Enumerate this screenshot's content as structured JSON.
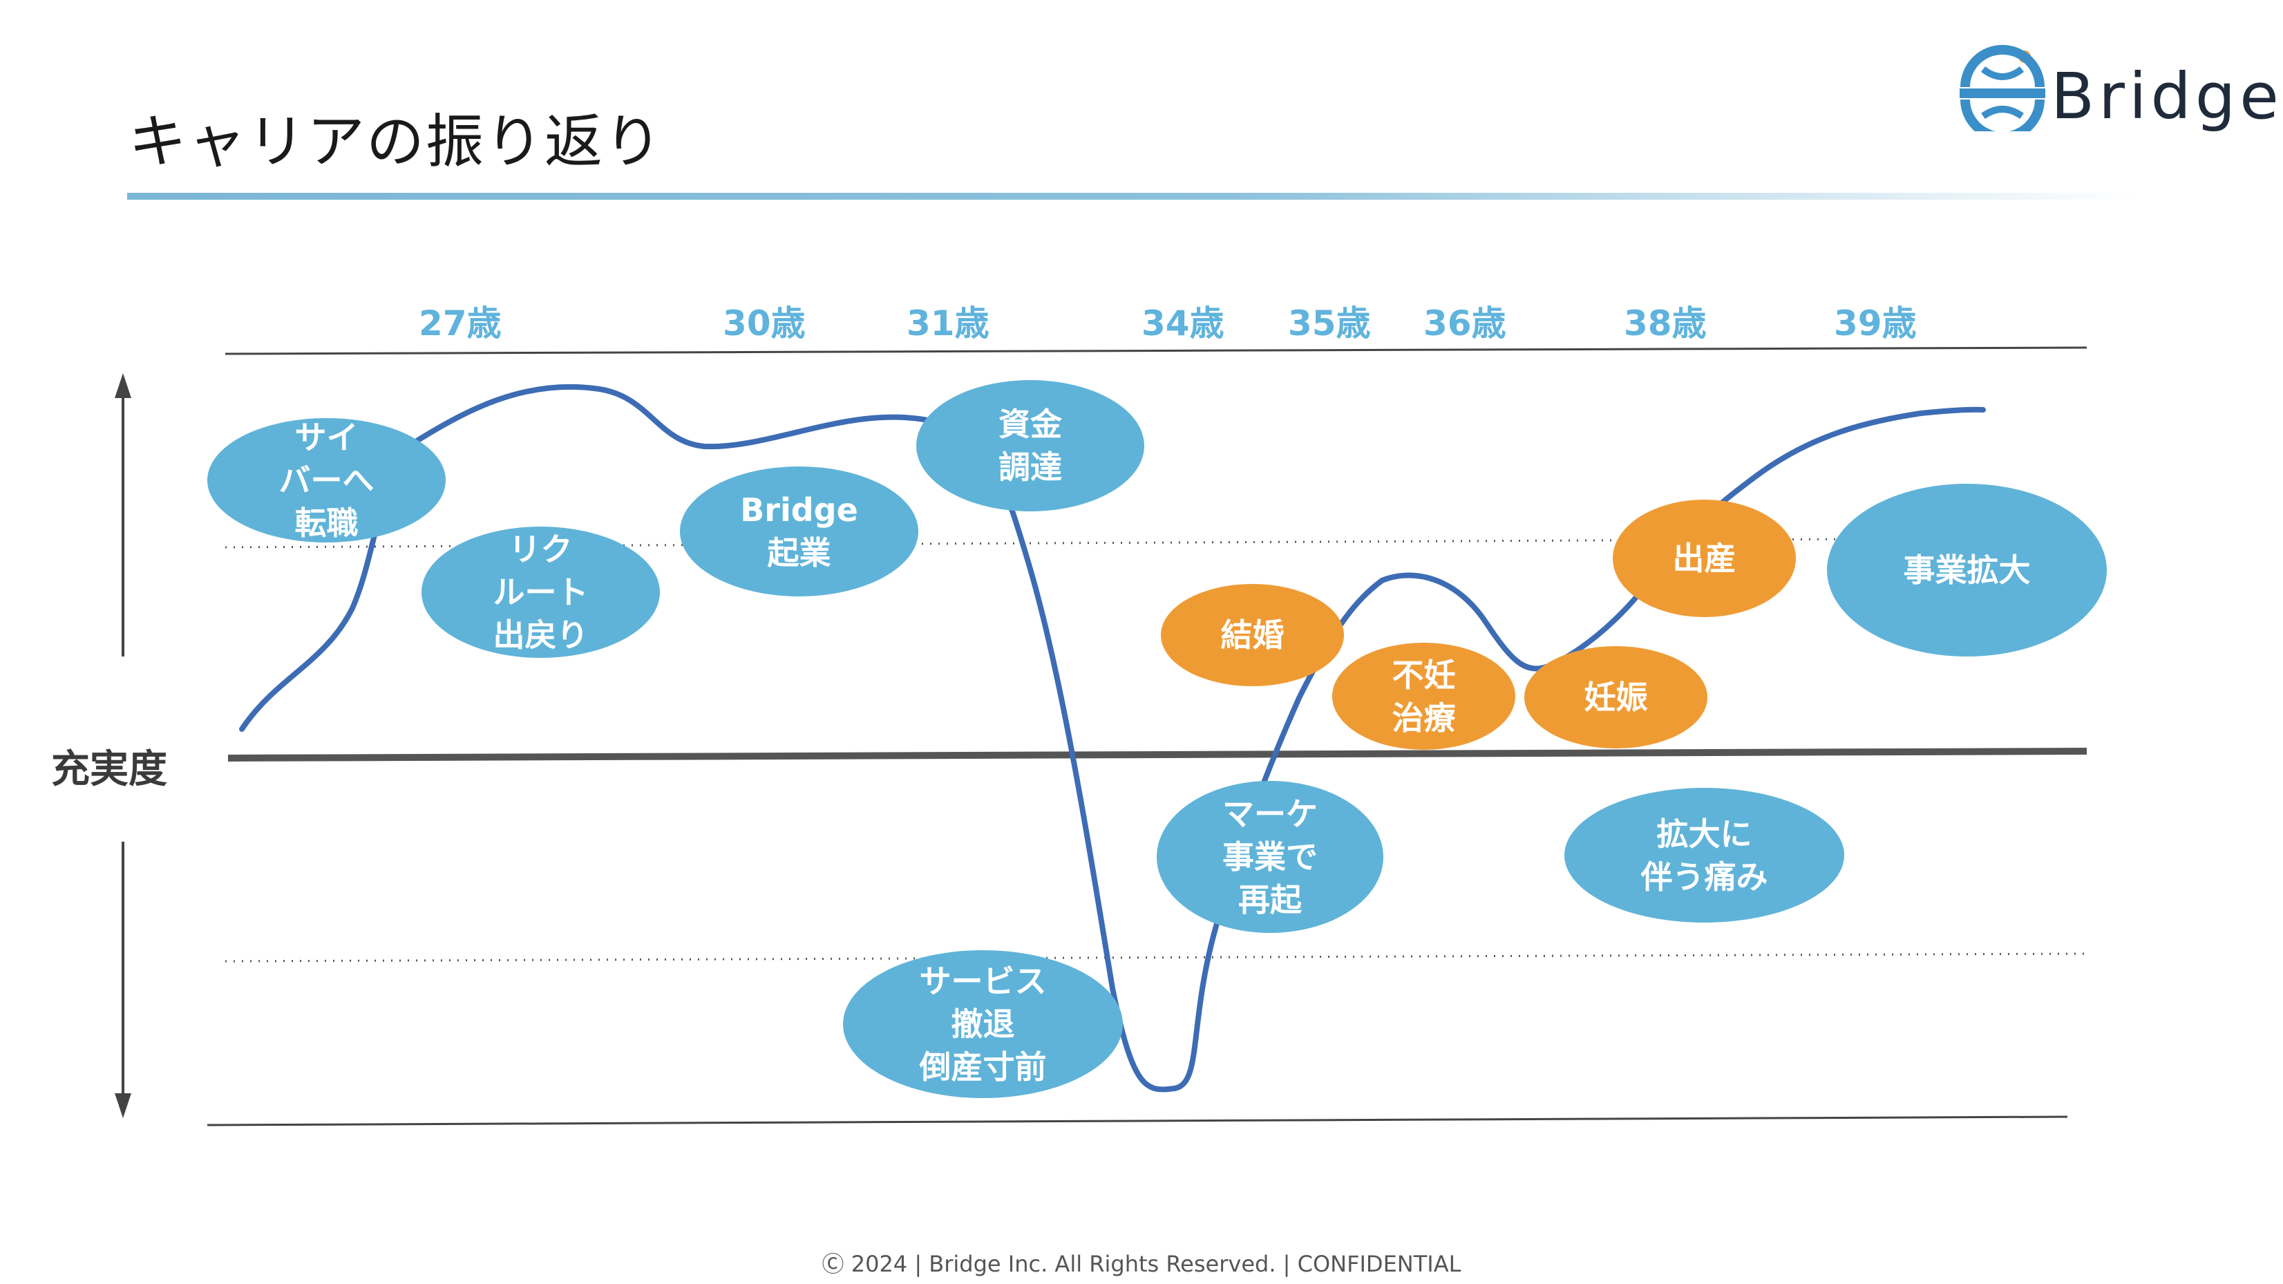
{
  "header": {
    "title": "キャリアの振り返り"
  },
  "logo": {
    "name": "Bridge",
    "icon": "bridge-globe-logo",
    "accent": "#ef9b34",
    "brand": "#3a8fc8"
  },
  "colors": {
    "blue_event": "#5fb3d8",
    "orange_event": "#ef9b34",
    "curve": "#3d6cb5",
    "age_text": "#5fb3dc"
  },
  "axis": {
    "y_label": "充実度"
  },
  "ages": [
    "27歳",
    "30歳",
    "31歳",
    "34歳",
    "35歳",
    "36歳",
    "38歳",
    "39歳"
  ],
  "events": [
    {
      "label": "サイ\nバーへ\n転職",
      "color": "blue"
    },
    {
      "label": "リク\nルート\n出戻り",
      "color": "blue"
    },
    {
      "label": "Bridge\n起業",
      "color": "blue"
    },
    {
      "label": "資金\n調達",
      "color": "blue"
    },
    {
      "label": "サービス\n撤退\n倒産寸前",
      "color": "blue"
    },
    {
      "label": "結婚",
      "color": "orange"
    },
    {
      "label": "マーケ\n事業で\n再起",
      "color": "blue"
    },
    {
      "label": "不妊\n治療",
      "color": "orange"
    },
    {
      "label": "妊娠",
      "color": "orange"
    },
    {
      "label": "出産",
      "color": "orange"
    },
    {
      "label": "拡大に\n伴う痛み",
      "color": "blue"
    },
    {
      "label": "事業拡大",
      "color": "blue"
    }
  ],
  "footer": {
    "text": "Ⓒ 2024 | Bridge Inc. All  Rights  Reserved. | CONFIDENTIAL"
  }
}
